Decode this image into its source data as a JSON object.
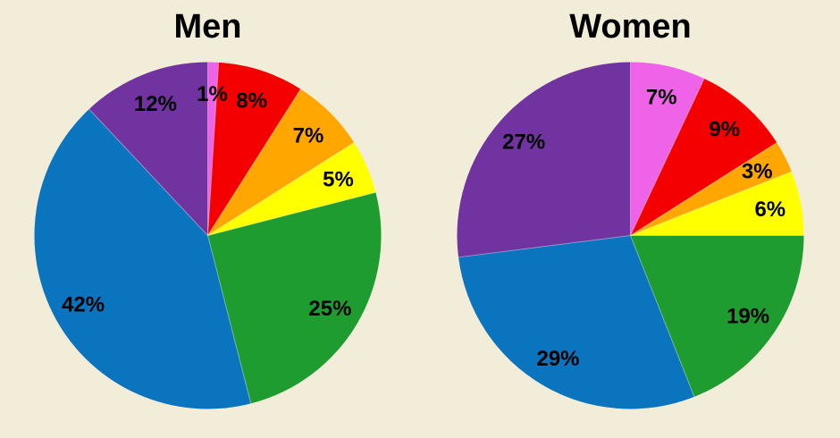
{
  "page": {
    "background_color": "#F2EDD8",
    "text_color": "#000000"
  },
  "chart_data": [
    {
      "type": "pie",
      "title": "Men",
      "start_angle": "12-oclock",
      "direction": "clockwise",
      "legend": "none",
      "slices": [
        {
          "label": "1%",
          "value": 1,
          "color": "#EF63E8"
        },
        {
          "label": "8%",
          "value": 8,
          "color": "#F50000"
        },
        {
          "label": "7%",
          "value": 7,
          "color": "#FFA700"
        },
        {
          "label": "5%",
          "value": 5,
          "color": "#FFFF00"
        },
        {
          "label": "25%",
          "value": 25,
          "color": "#1E9C30"
        },
        {
          "label": "42%",
          "value": 42,
          "color": "#0B74BE"
        },
        {
          "label": "12%",
          "value": 12,
          "color": "#7133A0"
        }
      ]
    },
    {
      "type": "pie",
      "title": "Women",
      "start_angle": "12-oclock",
      "direction": "clockwise",
      "legend": "none",
      "slices": [
        {
          "label": "7%",
          "value": 7,
          "color": "#EF63E8"
        },
        {
          "label": "9%",
          "value": 9,
          "color": "#F50000"
        },
        {
          "label": "3%",
          "value": 3,
          "color": "#FFA700"
        },
        {
          "label": "6%",
          "value": 6,
          "color": "#FFFF00"
        },
        {
          "label": "19%",
          "value": 19,
          "color": "#1E9C30"
        },
        {
          "label": "29%",
          "value": 29,
          "color": "#0B74BE"
        },
        {
          "label": "27%",
          "value": 27,
          "color": "#7133A0"
        }
      ]
    }
  ]
}
